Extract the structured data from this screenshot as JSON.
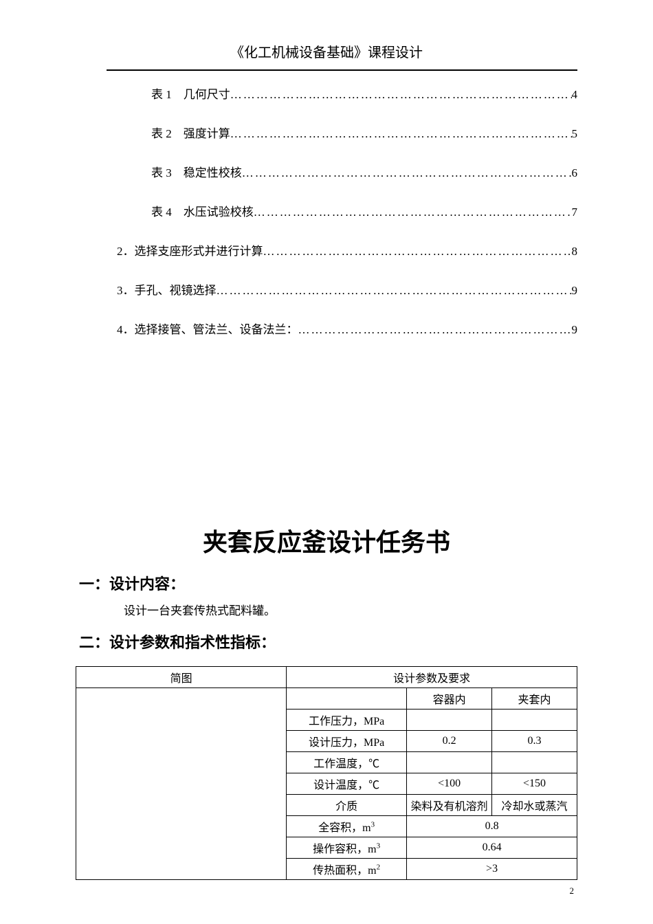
{
  "header": {
    "title": "《化工机械设备基础》课程设计"
  },
  "toc": {
    "items": [
      {
        "indent": "sub",
        "label": "表 1　几何尺寸",
        "page": "4"
      },
      {
        "indent": "sub",
        "label": "表 2　强度计算",
        "page": "5"
      },
      {
        "indent": "sub",
        "label": "表 3　稳定性校核",
        "page": "6"
      },
      {
        "indent": "sub",
        "label": "表 4　水压试验校核",
        "page": "7"
      },
      {
        "indent": "main",
        "label": "2．选择支座形式并进行计算 ",
        "page": "8"
      },
      {
        "indent": "main",
        "label": "3．手孔、视镜选择",
        "page": "9"
      },
      {
        "indent": "main",
        "label": "4．选择接管、管法兰、设备法兰：",
        "page": "9"
      }
    ]
  },
  "mainTitle": "夹套反应釜设计任务书",
  "section1": {
    "heading": "一：设计内容：",
    "text": "设计一台夹套传热式配料罐。"
  },
  "section2": {
    "heading": "二：设计参数和指术性指标："
  },
  "table": {
    "headers": {
      "diagram": "简图",
      "params": "设计参数及要求",
      "vessel": "容器内",
      "jacket": "夹套内"
    },
    "rows": [
      {
        "label": "工作压力，MPa",
        "v1": "",
        "v2": ""
      },
      {
        "label": "设计压力，MPa",
        "v1": "0.2",
        "v2": "0.3"
      },
      {
        "label": "工作温度，℃",
        "v1": "",
        "v2": ""
      },
      {
        "label": "设计温度，℃",
        "v1": "<100",
        "v2": "<150"
      },
      {
        "label": "介质",
        "v1": "染料及有机溶剂",
        "v2": "冷却水或蒸汽"
      },
      {
        "label": "全容积，m",
        "sup": "3",
        "merged": "0.8"
      },
      {
        "label": "操作容积，m",
        "sup": "3",
        "merged": "0.64"
      },
      {
        "label": "传热面积，m",
        "sup": "2",
        "merged": ">3"
      }
    ]
  },
  "pageNumber": "2"
}
